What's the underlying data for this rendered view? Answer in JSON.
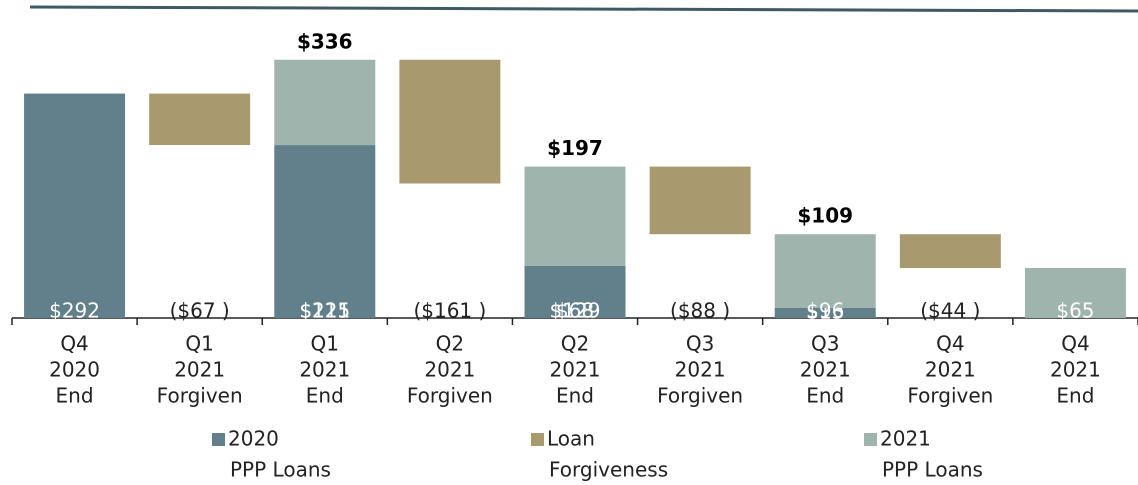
{
  "chart_data": {
    "type": "waterfall",
    "categories": [
      [
        "Q4",
        "2020",
        "End"
      ],
      [
        "Q1",
        "2021",
        "Forgiven"
      ],
      [
        "Q1",
        "2021",
        "End"
      ],
      [
        "Q2",
        "2021",
        "Forgiven"
      ],
      [
        "Q2",
        "2021",
        "End"
      ],
      [
        "Q3",
        "2021",
        "Forgiven"
      ],
      [
        "Q3",
        "2021",
        "End"
      ],
      [
        "Q4",
        "2021",
        "Forgiven"
      ],
      [
        "Q4",
        "2021",
        "End"
      ]
    ],
    "series": [
      {
        "name": [
          "2020",
          "PPP Loans"
        ],
        "color": "#627f8c",
        "label_color": "#ffffff",
        "values": [
          292,
          null,
          225,
          null,
          68,
          null,
          13,
          null,
          null
        ],
        "value_labels": [
          "$292",
          null,
          "$225",
          null,
          "$68",
          null,
          "$13",
          null,
          null
        ]
      },
      {
        "name": [
          "Loan",
          "Forgiveness"
        ],
        "color": "#a8996e",
        "label_color": "#222222",
        "values": [
          null,
          -67,
          null,
          -161,
          null,
          -88,
          null,
          -44,
          null
        ],
        "value_labels": [
          null,
          "($67 )",
          null,
          "($161 )",
          null,
          "($88 )",
          null,
          "($44 )",
          null
        ]
      },
      {
        "name": [
          "2021",
          "PPP Loans"
        ],
        "color": "#9fb4ac",
        "label_color": "#ffffff",
        "values": [
          null,
          null,
          111,
          null,
          129,
          null,
          96,
          null,
          65
        ],
        "value_labels": [
          null,
          null,
          "$111",
          null,
          "$129",
          null,
          "$96",
          null,
          "$65"
        ]
      }
    ],
    "totals": {
      "values": [
        null,
        null,
        336,
        null,
        197,
        null,
        109,
        null,
        null
      ],
      "value_labels": [
        null,
        null,
        "$336",
        null,
        "$197",
        null,
        "$109",
        null,
        null
      ]
    },
    "ylim": [
      0,
      350
    ]
  }
}
